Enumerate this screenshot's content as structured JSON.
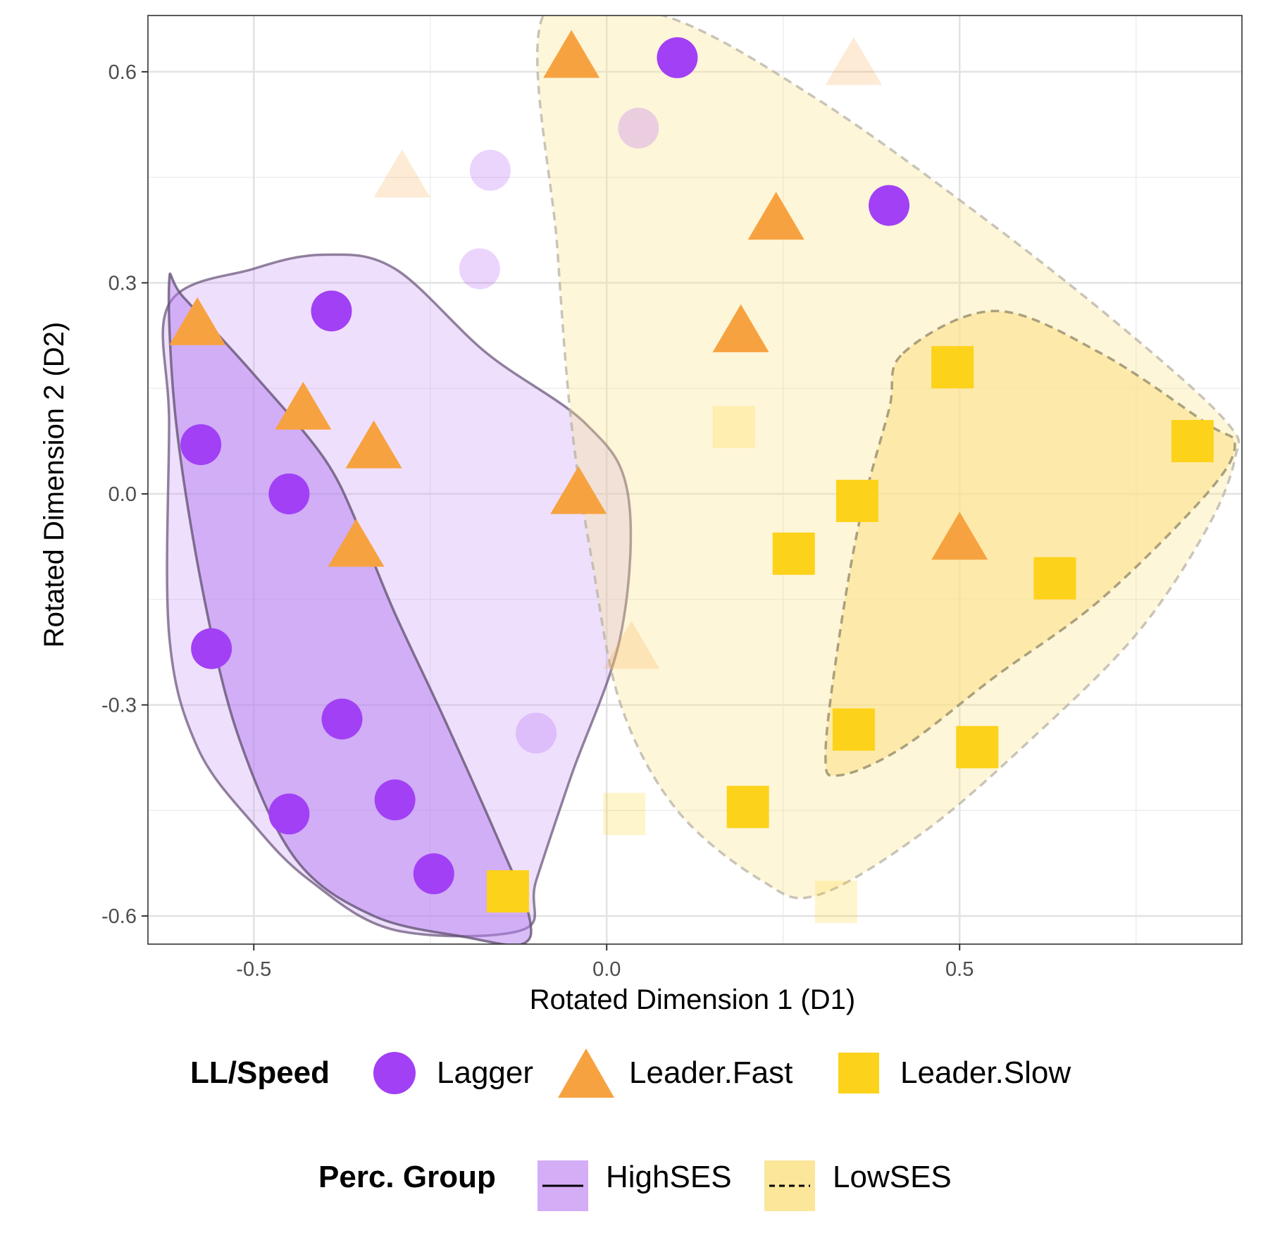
{
  "chart_data": {
    "type": "scatter",
    "xlabel": "Rotated Dimension 1 (D1)",
    "ylabel": "Rotated Dimension 2 (D2)",
    "xlim": [
      -0.65,
      0.9
    ],
    "ylim": [
      -0.64,
      0.68
    ],
    "x_ticks": [
      -0.5,
      0.0,
      0.5
    ],
    "x_tick_labels": [
      "-0.5",
      "0.0",
      "0.5"
    ],
    "y_ticks": [
      0.6,
      0.3,
      0.0,
      -0.3,
      -0.6
    ],
    "y_tick_labels": [
      "0.6",
      "0.3",
      "0.0",
      "-0.3",
      "-0.6"
    ],
    "grid": true,
    "legend_position": "bottom",
    "colors": {
      "Lagger": "#a240f5",
      "Leader.Fast": "#f7a240",
      "Leader.Slow": "#fdd21a",
      "HighSES_fill": "#c9a0f5",
      "LowSES_fill": "#fbe38a"
    },
    "legend": {
      "shape_title": "LL/Speed",
      "shape_entries": [
        {
          "label": "Lagger",
          "shape": "circle"
        },
        {
          "label": "Leader.Fast",
          "shape": "triangle"
        },
        {
          "label": "Leader.Slow",
          "shape": "square"
        }
      ],
      "group_title": "Perc. Group",
      "group_entries": [
        {
          "label": "HighSES",
          "line": "solid"
        },
        {
          "label": "LowSES",
          "line": "dashed"
        }
      ]
    },
    "points": [
      {
        "x": 0.1,
        "y": 0.62,
        "class": "Lagger",
        "faded": false
      },
      {
        "x": 0.4,
        "y": 0.41,
        "class": "Lagger",
        "faded": false
      },
      {
        "x": -0.39,
        "y": 0.26,
        "class": "Lagger",
        "faded": false
      },
      {
        "x": -0.575,
        "y": 0.07,
        "class": "Lagger",
        "faded": false
      },
      {
        "x": -0.45,
        "y": 0.0,
        "class": "Lagger",
        "faded": false
      },
      {
        "x": -0.56,
        "y": -0.22,
        "class": "Lagger",
        "faded": false
      },
      {
        "x": -0.375,
        "y": -0.32,
        "class": "Lagger",
        "faded": false
      },
      {
        "x": -0.45,
        "y": -0.455,
        "class": "Lagger",
        "faded": false
      },
      {
        "x": -0.3,
        "y": -0.435,
        "class": "Lagger",
        "faded": false
      },
      {
        "x": -0.245,
        "y": -0.54,
        "class": "Lagger",
        "faded": false
      },
      {
        "x": -0.165,
        "y": 0.46,
        "class": "Lagger",
        "faded": true
      },
      {
        "x": -0.18,
        "y": 0.32,
        "class": "Lagger",
        "faded": true
      },
      {
        "x": 0.045,
        "y": 0.52,
        "class": "Lagger",
        "faded": true
      },
      {
        "x": -0.1,
        "y": -0.34,
        "class": "Lagger",
        "faded": true
      },
      {
        "x": -0.05,
        "y": 0.62,
        "class": "Leader.Fast",
        "faded": false
      },
      {
        "x": 0.24,
        "y": 0.39,
        "class": "Leader.Fast",
        "faded": false
      },
      {
        "x": 0.19,
        "y": 0.23,
        "class": "Leader.Fast",
        "faded": false
      },
      {
        "x": -0.58,
        "y": 0.24,
        "class": "Leader.Fast",
        "faded": false
      },
      {
        "x": -0.43,
        "y": 0.12,
        "class": "Leader.Fast",
        "faded": false
      },
      {
        "x": -0.33,
        "y": 0.065,
        "class": "Leader.Fast",
        "faded": false
      },
      {
        "x": -0.04,
        "y": -0.0,
        "class": "Leader.Fast",
        "faded": false
      },
      {
        "x": -0.355,
        "y": -0.075,
        "class": "Leader.Fast",
        "faded": false
      },
      {
        "x": 0.5,
        "y": -0.065,
        "class": "Leader.Fast",
        "faded": false
      },
      {
        "x": -0.29,
        "y": 0.45,
        "class": "Leader.Fast",
        "faded": true
      },
      {
        "x": 0.35,
        "y": 0.61,
        "class": "Leader.Fast",
        "faded": true
      },
      {
        "x": 0.035,
        "y": -0.22,
        "class": "Leader.Fast",
        "faded": true
      },
      {
        "x": 0.49,
        "y": 0.18,
        "class": "Leader.Slow",
        "faded": false
      },
      {
        "x": 0.83,
        "y": 0.075,
        "class": "Leader.Slow",
        "faded": false
      },
      {
        "x": 0.355,
        "y": -0.01,
        "class": "Leader.Slow",
        "faded": false
      },
      {
        "x": 0.265,
        "y": -0.085,
        "class": "Leader.Slow",
        "faded": false
      },
      {
        "x": 0.635,
        "y": -0.12,
        "class": "Leader.Slow",
        "faded": false
      },
      {
        "x": 0.35,
        "y": -0.335,
        "class": "Leader.Slow",
        "faded": false
      },
      {
        "x": 0.525,
        "y": -0.36,
        "class": "Leader.Slow",
        "faded": false
      },
      {
        "x": 0.2,
        "y": -0.445,
        "class": "Leader.Slow",
        "faded": false
      },
      {
        "x": -0.14,
        "y": -0.565,
        "class": "Leader.Slow",
        "faded": false
      },
      {
        "x": 0.18,
        "y": 0.095,
        "class": "Leader.Slow",
        "faded": true
      },
      {
        "x": 0.025,
        "y": -0.455,
        "class": "Leader.Slow",
        "faded": true
      },
      {
        "x": 0.325,
        "y": -0.58,
        "class": "Leader.Slow",
        "faded": true
      }
    ],
    "hulls": [
      {
        "group": "HighSES",
        "kind": "outer",
        "line": "solid",
        "fill": "#c9a0f5",
        "fill_opacity": 0.32,
        "stroke": "#6e5a7e",
        "points": [
          [
            -0.62,
            0.27
          ],
          [
            -0.5,
            0.32
          ],
          [
            -0.4,
            0.34
          ],
          [
            -0.3,
            0.32
          ],
          [
            -0.17,
            0.2
          ],
          [
            -0.03,
            0.1
          ],
          [
            0.03,
            0.0
          ],
          [
            0.02,
            -0.2
          ],
          [
            -0.05,
            -0.4
          ],
          [
            -0.1,
            -0.55
          ],
          [
            -0.12,
            -0.62
          ],
          [
            -0.3,
            -0.62
          ],
          [
            -0.42,
            -0.55
          ],
          [
            -0.5,
            -0.47
          ],
          [
            -0.58,
            -0.36
          ],
          [
            -0.62,
            -0.2
          ],
          [
            -0.62,
            0.1
          ]
        ]
      },
      {
        "group": "HighSES",
        "kind": "inner",
        "line": "solid",
        "fill": "#b47cf0",
        "fill_opacity": 0.5,
        "stroke": "#5e4e6e",
        "points": [
          [
            -0.62,
            0.3
          ],
          [
            -0.6,
            0.28
          ],
          [
            -0.5,
            0.17
          ],
          [
            -0.4,
            0.05
          ],
          [
            -0.35,
            -0.05
          ],
          [
            -0.3,
            -0.17
          ],
          [
            -0.23,
            -0.32
          ],
          [
            -0.15,
            -0.5
          ],
          [
            -0.11,
            -0.6
          ],
          [
            -0.12,
            -0.64
          ],
          [
            -0.2,
            -0.63
          ],
          [
            -0.33,
            -0.6
          ],
          [
            -0.44,
            -0.52
          ],
          [
            -0.52,
            -0.35
          ],
          [
            -0.57,
            -0.15
          ],
          [
            -0.61,
            0.1
          ]
        ]
      },
      {
        "group": "LowSES",
        "kind": "outer",
        "line": "dashed",
        "fill": "#fbe38a",
        "fill_opacity": 0.32,
        "stroke": "#b7b2a6",
        "points": [
          [
            -0.09,
            0.68
          ],
          [
            0.08,
            0.68
          ],
          [
            0.3,
            0.56
          ],
          [
            0.55,
            0.38
          ],
          [
            0.75,
            0.22
          ],
          [
            0.88,
            0.1
          ],
          [
            0.89,
            0.05
          ],
          [
            0.85,
            -0.05
          ],
          [
            0.75,
            -0.2
          ],
          [
            0.6,
            -0.35
          ],
          [
            0.45,
            -0.48
          ],
          [
            0.3,
            -0.57
          ],
          [
            0.22,
            -0.55
          ],
          [
            0.1,
            -0.45
          ],
          [
            0.02,
            -0.3
          ],
          [
            -0.02,
            -0.1
          ],
          [
            -0.05,
            0.1
          ],
          [
            -0.07,
            0.35
          ]
        ]
      },
      {
        "group": "LowSES",
        "kind": "inner",
        "line": "dashed",
        "fill": "#fbe38a",
        "fill_opacity": 0.6,
        "stroke": "#8e8666",
        "points": [
          [
            0.42,
            0.2
          ],
          [
            0.55,
            0.26
          ],
          [
            0.7,
            0.2
          ],
          [
            0.85,
            0.1
          ],
          [
            0.89,
            0.07
          ],
          [
            0.85,
            0.0
          ],
          [
            0.7,
            -0.15
          ],
          [
            0.55,
            -0.26
          ],
          [
            0.42,
            -0.36
          ],
          [
            0.33,
            -0.4
          ],
          [
            0.31,
            -0.37
          ],
          [
            0.33,
            -0.2
          ],
          [
            0.36,
            -0.03
          ],
          [
            0.4,
            0.12
          ]
        ]
      }
    ]
  }
}
